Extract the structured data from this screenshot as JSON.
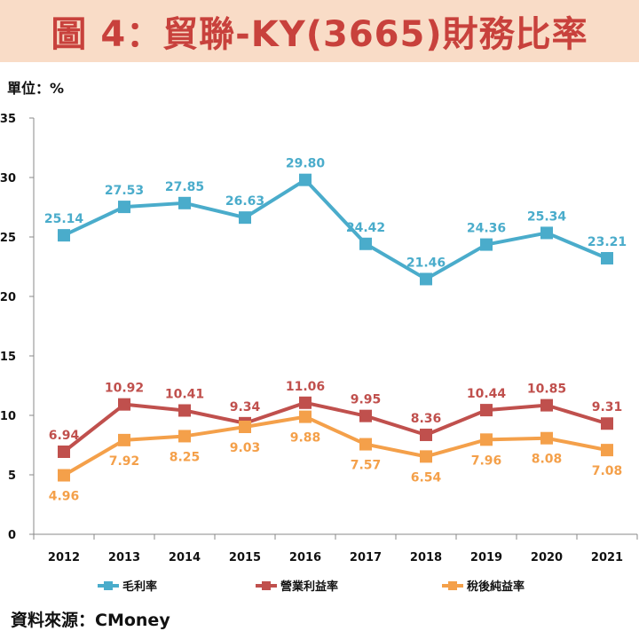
{
  "header": {
    "title": "圖 4：貿聯-KY(3665)財務比率"
  },
  "unit": "單位：%",
  "source": "資料來源：CMoney",
  "colors": {
    "title_bg": "#f9dcc7",
    "title_text": "#c8413c",
    "gross_margin": "#4aaccb",
    "operating_margin": "#c0504d",
    "net_margin": "#f4a04a"
  },
  "chart_data": {
    "type": "line",
    "title": "貿聯-KY(3665)財務比率",
    "ylabel": "單位：%",
    "xlabel": "",
    "categories": [
      "2012",
      "2013",
      "2014",
      "2015",
      "2016",
      "2017",
      "2018",
      "2019",
      "2020",
      "2021"
    ],
    "ylim": [
      0,
      35
    ],
    "yticks": [
      "0",
      "5",
      "10",
      "15",
      "20",
      "25",
      "30",
      "35"
    ],
    "grid": false,
    "legend": "bottom",
    "series": [
      {
        "name": "毛利率",
        "color": "#4aaccb",
        "label_pos": "above",
        "values": [
          25.14,
          27.53,
          27.85,
          26.63,
          29.8,
          24.42,
          21.46,
          24.36,
          25.34,
          23.21
        ],
        "labels": [
          "25.14",
          "27.53",
          "27.85",
          "26.63",
          "29.80",
          "24.42",
          "21.46",
          "24.36",
          "25.34",
          "23.21"
        ]
      },
      {
        "name": "營業利益率",
        "color": "#c0504d",
        "label_pos": "above",
        "values": [
          6.94,
          10.92,
          10.41,
          9.34,
          11.06,
          9.95,
          8.36,
          10.44,
          10.85,
          9.31
        ],
        "labels": [
          "6.94",
          "10.92",
          "10.41",
          "9.34",
          "11.06",
          "9.95",
          "8.36",
          "10.44",
          "10.85",
          "9.31"
        ]
      },
      {
        "name": "稅後純益率",
        "color": "#f4a04a",
        "label_pos": "below",
        "values": [
          4.96,
          7.92,
          8.25,
          9.03,
          9.88,
          7.57,
          6.54,
          7.96,
          8.08,
          7.08
        ],
        "labels": [
          "4.96",
          "7.92",
          "8.25",
          "9.03",
          "9.88",
          "7.57",
          "6.54",
          "7.96",
          "8.08",
          "7.08"
        ]
      }
    ]
  }
}
